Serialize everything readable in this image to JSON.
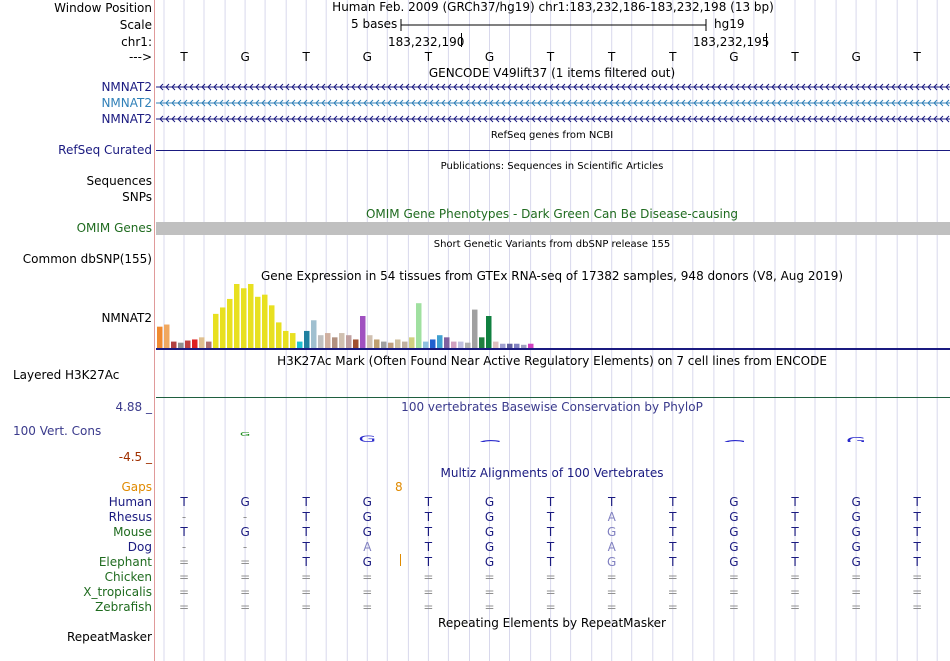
{
  "header": {
    "window_position_label": "Window Position",
    "scale_label": "Scale",
    "chrom_label": "chr1:",
    "arrow_label": "--->",
    "assembly_position": "Human Feb. 2009 (GRCh37/hg19)   chr1:183,232,186-183,232,198 (13 bp)",
    "scale_text": "5 bases",
    "scale_assembly": "hg19",
    "coord_left": "183,232,190",
    "coord_right": "183,232,195"
  },
  "sequence": [
    "T",
    "G",
    "T",
    "G",
    "T",
    "G",
    "T",
    "T",
    "T",
    "G",
    "T",
    "G",
    "T"
  ],
  "tracks": {
    "gencode": {
      "title": "GENCODE V49lift37 (1 items filtered out)",
      "genes": [
        {
          "label": "NMNAT2",
          "color": "#1a1a80"
        },
        {
          "label": "NMNAT2",
          "color": "#3080b8"
        },
        {
          "label": "NMNAT2",
          "color": "#1a1a80"
        }
      ]
    },
    "refseq": {
      "title": "RefSeq genes from NCBI",
      "label": "RefSeq Curated",
      "color": "#1a1a80"
    },
    "publications": {
      "title": "Publications: Sequences in Scientific Articles",
      "label1": "Sequences",
      "label2": "SNPs"
    },
    "omim": {
      "title": "OMIM Gene Phenotypes - Dark Green Can Be Disease-causing",
      "label": "OMIM Genes",
      "color": "#1f6b1f"
    },
    "dbsnp": {
      "title": "Short Genetic Variants from dbSNP release 155",
      "label": "Common dbSNP(155)"
    },
    "gtex": {
      "title": "Gene Expression in 54 tissues from GTEx RNA-seq of 17382 samples, 948 donors (V8, Aug 2019)",
      "label": "NMNAT2"
    },
    "h3k27ac": {
      "title": "H3K27Ac Mark (Often Found Near Active Regulatory Elements) on 7 cell lines from ENCODE",
      "label": "Layered H3K27Ac"
    },
    "phylop": {
      "title": "100 vertebrates Basewise Conservation by PhyloP",
      "label": "100 Vert. Cons",
      "max_label": "4.88 _",
      "min_label": "-4.5 _",
      "color_title": "#3a3a8c",
      "color_max": "#3a3a8c",
      "color_min": "#a03000"
    },
    "multiz": {
      "title": "Multiz Alignments of 100 Vertebrates",
      "title_color": "#1a1a80",
      "gaps_label": "Gaps",
      "gaps_value": "8",
      "species": [
        {
          "name": "Human",
          "color": "#1a1a80",
          "bases": [
            "T",
            "G",
            "T",
            "G",
            "T",
            "G",
            "T",
            "T",
            "T",
            "G",
            "T",
            "G",
            "T"
          ]
        },
        {
          "name": "Rhesus",
          "color": "#1a1a80",
          "bases": [
            "-",
            "-",
            "T",
            "G",
            "T",
            "G",
            "T",
            "A",
            "T",
            "G",
            "T",
            "G",
            "T"
          ]
        },
        {
          "name": "Mouse",
          "color": "#1f6b1f",
          "bases": [
            "T",
            "G",
            "T",
            "G",
            "T",
            "G",
            "T",
            "G",
            "T",
            "G",
            "T",
            "G",
            "T"
          ]
        },
        {
          "name": "Dog",
          "color": "#1a1a80",
          "bases": [
            "-",
            "-",
            "T",
            "A",
            "T",
            "G",
            "T",
            "A",
            "T",
            "G",
            "T",
            "G",
            "T"
          ]
        },
        {
          "name": "Elephant",
          "color": "#1f6b1f",
          "bases": [
            "=",
            "=",
            "T",
            "G",
            "T",
            "G",
            "T",
            "G",
            "T",
            "G",
            "T",
            "G",
            "T"
          ]
        },
        {
          "name": "Chicken",
          "color": "#1f6b1f",
          "bases": [
            "=",
            "=",
            "=",
            "=",
            "=",
            "=",
            "=",
            "=",
            "=",
            "=",
            "=",
            "=",
            "="
          ]
        },
        {
          "name": "X_tropicalis",
          "color": "#1f6b1f",
          "bases": [
            "=",
            "=",
            "=",
            "=",
            "=",
            "=",
            "=",
            "=",
            "=",
            "=",
            "=",
            "=",
            "="
          ]
        },
        {
          "name": "Zebrafish",
          "color": "#1f6b1f",
          "bases": [
            "=",
            "=",
            "=",
            "=",
            "=",
            "=",
            "=",
            "=",
            "=",
            "=",
            "=",
            "=",
            "="
          ]
        }
      ]
    },
    "repeatmasker": {
      "title": "Repeating Elements by RepeatMasker",
      "label": "RepeatMasker"
    }
  },
  "chart_data": {
    "type": "bar",
    "title": "Gene Expression in 54 tissues from GTEx RNA-seq of 17382 samples, 948 donors (V8, Aug 2019)",
    "values": [
      20,
      22,
      6,
      5,
      7,
      8,
      10,
      6,
      32,
      38,
      46,
      60,
      56,
      60,
      48,
      50,
      40,
      24,
      16,
      14,
      6,
      16,
      26,
      12,
      14,
      10,
      14,
      12,
      8,
      30,
      12,
      8,
      6,
      5,
      8,
      6,
      10,
      42,
      6,
      8,
      12,
      10,
      6,
      6,
      5,
      36,
      10,
      30,
      6,
      4,
      4,
      4,
      3,
      4
    ],
    "colors": [
      "#f08a30",
      "#f0a860",
      "#b04040",
      "#909090",
      "#c04040",
      "#e02020",
      "#e0c090",
      "#b07070",
      "#e8e020",
      "#e8e020",
      "#e8e020",
      "#e8e020",
      "#e8e020",
      "#e8e020",
      "#e8e020",
      "#e8e020",
      "#e8e020",
      "#e8e020",
      "#e8e020",
      "#e8e020",
      "#20c0d0",
      "#2080a0",
      "#a0c0d0",
      "#c0c0c0",
      "#d0b0a0",
      "#b09080",
      "#d0c0b0",
      "#c0a0a0",
      "#a05030",
      "#a050c0",
      "#d0c0b0",
      "#c0a070",
      "#a0a0a0",
      "#c0a080",
      "#d0c0a0",
      "#c0b0a0",
      "#d0d080",
      "#a0e0a0",
      "#90c0e0",
      "#2060d0",
      "#40a0d0",
      "#8060a0",
      "#d0a0c0",
      "#c0c0e0",
      "#b0b0b0",
      "#a0a0a0",
      "#208040",
      "#108040",
      "#e0c0c0",
      "#a0a0d0",
      "#6060a0",
      "#8080c0",
      "#a0a0c0",
      "#d040c0"
    ]
  }
}
